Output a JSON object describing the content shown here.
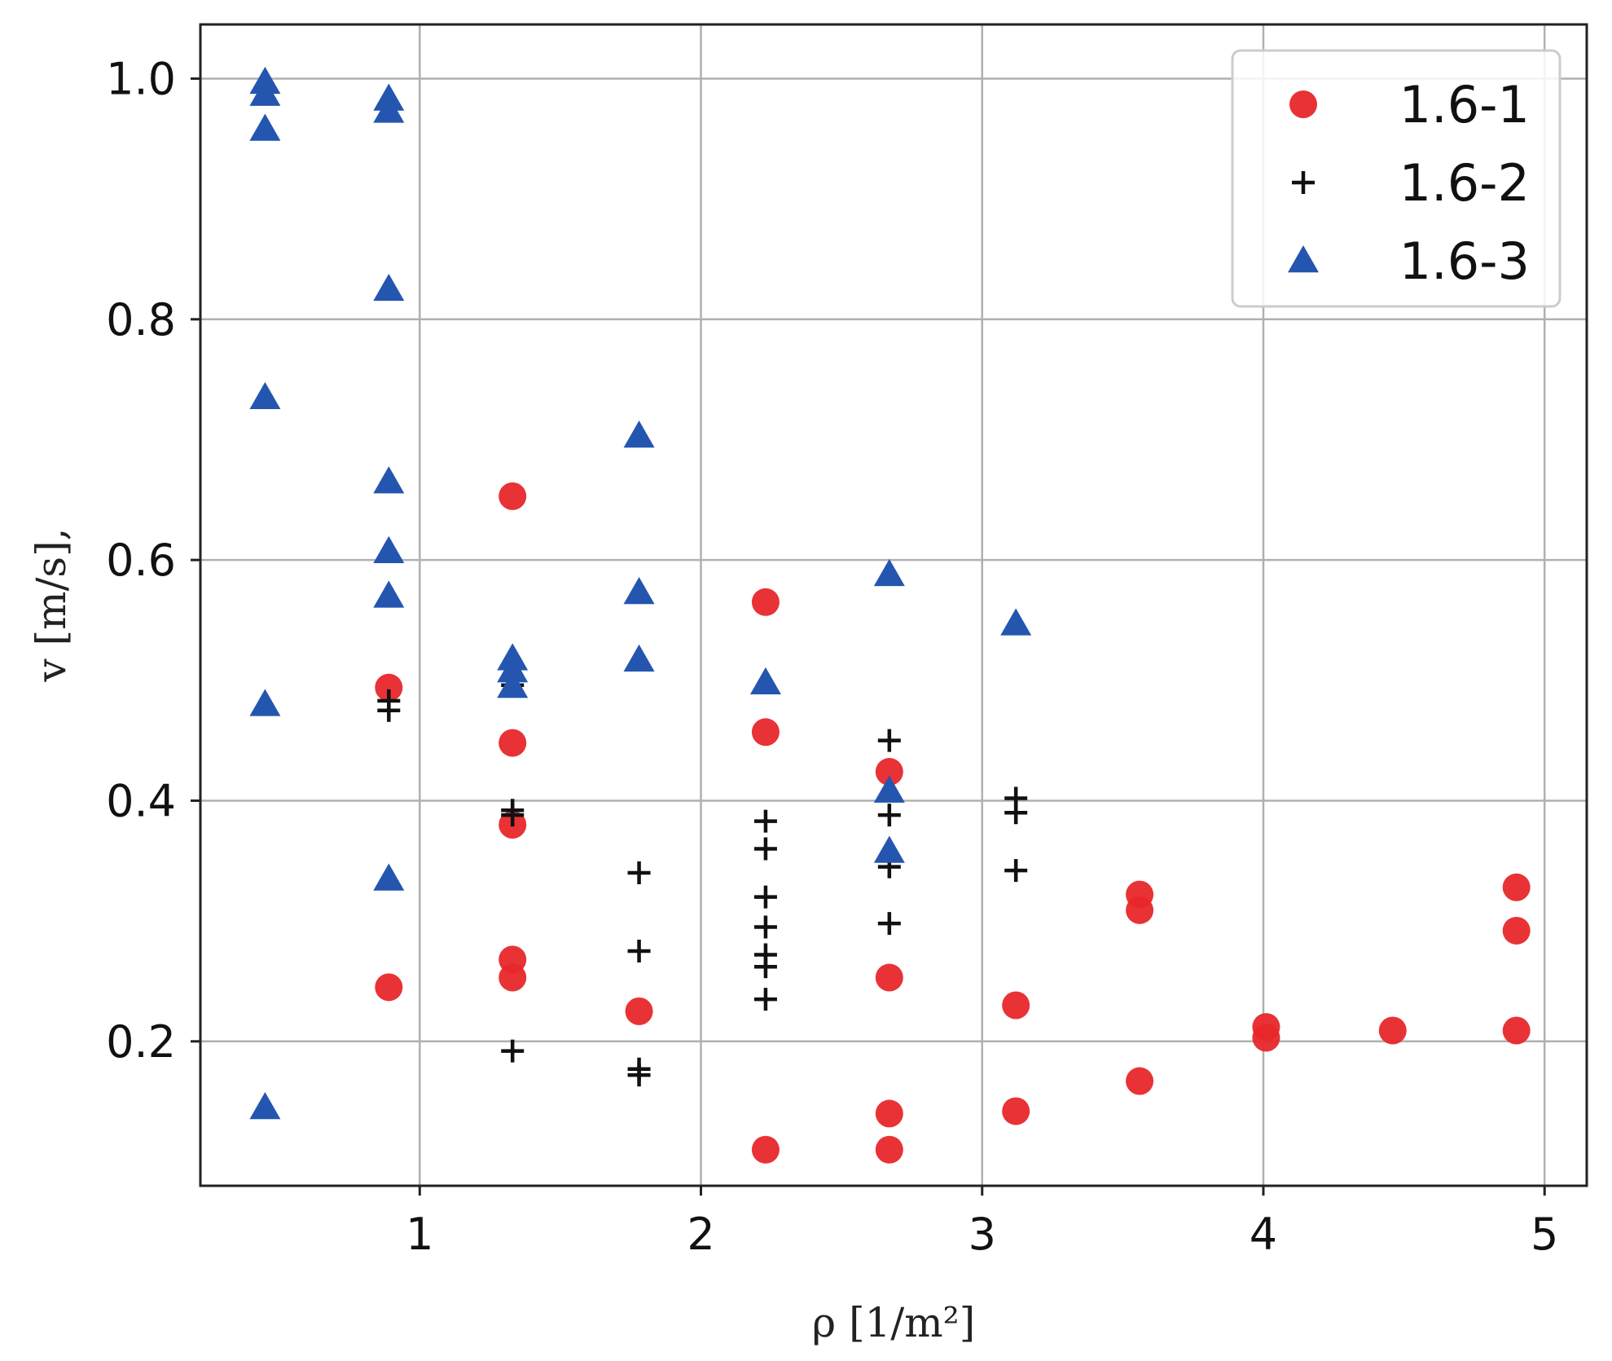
{
  "chart_data": {
    "type": "scatter",
    "xlabel": "ρ [1/m²]",
    "ylabel": "v [m/s],",
    "xlim": [
      0.22,
      5.15
    ],
    "ylim": [
      0.08,
      1.045
    ],
    "xticks": [
      1,
      2,
      3,
      4,
      5
    ],
    "xtick_labels": [
      "1",
      "2",
      "3",
      "4",
      "5"
    ],
    "yticks": [
      0.2,
      0.4,
      0.6,
      0.8,
      1.0
    ],
    "ytick_labels": [
      "0.2",
      "0.4",
      "0.6",
      "0.8",
      "1.0"
    ],
    "grid": true,
    "legend_position": "top-right",
    "series": [
      {
        "name": "1.6-1",
        "marker": "circle",
        "color": "#e8272a",
        "points": [
          [
            0.89,
            0.494
          ],
          [
            0.89,
            0.245
          ],
          [
            1.33,
            0.653
          ],
          [
            1.33,
            0.448
          ],
          [
            1.33,
            0.38
          ],
          [
            1.33,
            0.268
          ],
          [
            1.33,
            0.253
          ],
          [
            1.78,
            0.225
          ],
          [
            2.23,
            0.565
          ],
          [
            2.23,
            0.457
          ],
          [
            2.23,
            0.11
          ],
          [
            2.67,
            0.424
          ],
          [
            2.67,
            0.253
          ],
          [
            2.67,
            0.14
          ],
          [
            2.67,
            0.11
          ],
          [
            3.12,
            0.23
          ],
          [
            3.12,
            0.142
          ],
          [
            3.56,
            0.322
          ],
          [
            3.56,
            0.309
          ],
          [
            3.56,
            0.167
          ],
          [
            4.01,
            0.212
          ],
          [
            4.01,
            0.203
          ],
          [
            4.46,
            0.209
          ],
          [
            4.9,
            0.328
          ],
          [
            4.9,
            0.292
          ],
          [
            4.9,
            0.209
          ]
        ]
      },
      {
        "name": "1.6-2",
        "marker": "plus",
        "color": "#111111",
        "points": [
          [
            0.89,
            0.483
          ],
          [
            0.89,
            0.475
          ],
          [
            1.33,
            0.496
          ],
          [
            1.33,
            0.392
          ],
          [
            1.33,
            0.388
          ],
          [
            1.33,
            0.192
          ],
          [
            1.78,
            0.34
          ],
          [
            1.78,
            0.275
          ],
          [
            1.78,
            0.177
          ],
          [
            1.78,
            0.172
          ],
          [
            2.23,
            0.383
          ],
          [
            2.23,
            0.36
          ],
          [
            2.23,
            0.32
          ],
          [
            2.23,
            0.295
          ],
          [
            2.23,
            0.272
          ],
          [
            2.23,
            0.262
          ],
          [
            2.23,
            0.235
          ],
          [
            2.67,
            0.45
          ],
          [
            2.67,
            0.388
          ],
          [
            2.67,
            0.345
          ],
          [
            2.67,
            0.298
          ],
          [
            3.12,
            0.402
          ],
          [
            3.12,
            0.39
          ],
          [
            3.12,
            0.342
          ]
        ]
      },
      {
        "name": "1.6-3",
        "marker": "triangle",
        "color": "#2456b0",
        "points": [
          [
            0.45,
            0.997
          ],
          [
            0.45,
            0.987
          ],
          [
            0.45,
            0.958
          ],
          [
            0.45,
            0.735
          ],
          [
            0.45,
            0.48
          ],
          [
            0.45,
            0.145
          ],
          [
            0.89,
            0.983
          ],
          [
            0.89,
            0.973
          ],
          [
            0.89,
            0.825
          ],
          [
            0.89,
            0.665
          ],
          [
            0.89,
            0.607
          ],
          [
            0.89,
            0.57
          ],
          [
            0.89,
            0.335
          ],
          [
            1.33,
            0.518
          ],
          [
            1.33,
            0.508
          ],
          [
            1.33,
            0.495
          ],
          [
            1.78,
            0.703
          ],
          [
            1.78,
            0.573
          ],
          [
            1.78,
            0.517
          ],
          [
            2.23,
            0.498
          ],
          [
            2.67,
            0.588
          ],
          [
            2.67,
            0.408
          ],
          [
            2.67,
            0.358
          ],
          [
            3.12,
            0.547
          ]
        ]
      }
    ]
  }
}
